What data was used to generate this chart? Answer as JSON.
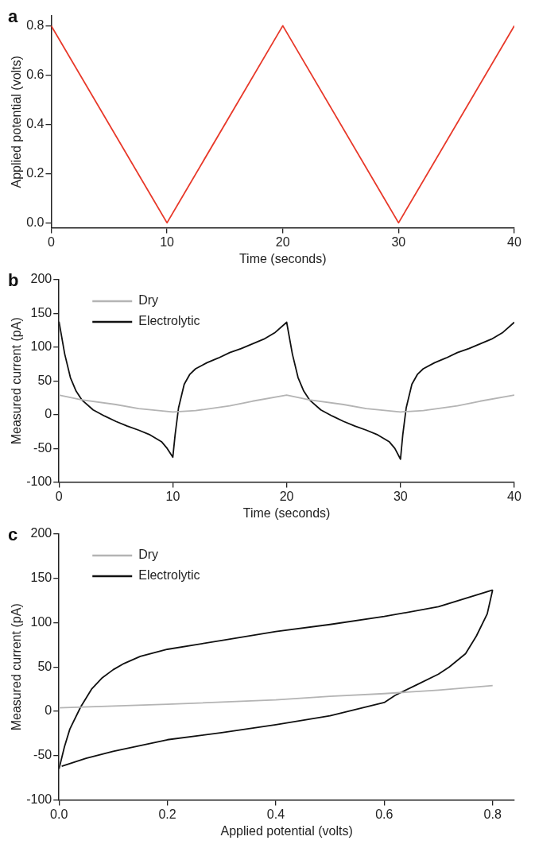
{
  "chart_data": [
    {
      "type": "line",
      "title": "a",
      "xlabel": "Time (seconds)",
      "ylabel": "Applied potential (volts)",
      "xlim": [
        0,
        40
      ],
      "ylim": [
        -0.02,
        0.84
      ],
      "xticks": [
        0,
        10,
        20,
        30,
        40
      ],
      "yticks": [
        {
          "value": 0,
          "label": "0.0"
        },
        0.2,
        0.4,
        0.6,
        0.8
      ],
      "grid": false,
      "legend": false,
      "marker": "none",
      "line_style": "solid",
      "series": [
        {
          "color": "#e8392a",
          "x": [
            0,
            10,
            20,
            30,
            40
          ],
          "values": [
            0.8,
            0,
            0.8,
            0,
            0.8
          ]
        }
      ]
    },
    {
      "type": "line",
      "title": "b",
      "xlabel": "Time (seconds)",
      "ylabel": "Measured current (pA)",
      "xlim": [
        0,
        40
      ],
      "ylim": [
        -100,
        200
      ],
      "xticks": [
        0,
        10,
        20,
        30,
        40
      ],
      "yticks": [
        -100,
        -50,
        0,
        50,
        100,
        150,
        200
      ],
      "grid": false,
      "legend": "top left",
      "marker": "none",
      "line_style": "solid",
      "series": [
        {
          "name": "Dry",
          "color": "#b4b4b4",
          "x": [
            0,
            2,
            5,
            7,
            10,
            12,
            15,
            17,
            20,
            22,
            25,
            27,
            30,
            32,
            35,
            37,
            40
          ],
          "values": [
            29,
            22,
            15,
            9,
            4,
            6,
            13,
            20,
            29,
            22,
            15,
            9,
            4,
            6,
            13,
            20,
            29
          ]
        },
        {
          "name": "Electrolytic",
          "color": "#111111",
          "x": [
            0,
            0.5,
            1,
            1.5,
            2,
            3,
            4,
            5,
            6,
            7,
            8,
            9,
            9.5,
            10,
            10.2,
            10.5,
            11,
            11.5,
            12,
            13,
            14,
            15,
            16,
            17,
            18,
            19,
            20,
            20.5,
            21,
            21.5,
            22,
            23,
            24,
            25,
            26,
            27,
            28,
            29,
            29.5,
            30,
            30.2,
            30.5,
            31,
            31.5,
            32,
            33,
            34,
            35,
            36,
            37,
            38,
            39,
            40
          ],
          "values": [
            138,
            90,
            55,
            35,
            22,
            7,
            -2,
            -10,
            -17,
            -23,
            -30,
            -40,
            -50,
            -63,
            -30,
            10,
            45,
            60,
            68,
            77,
            84,
            92,
            98,
            105,
            112,
            122,
            137,
            90,
            55,
            35,
            22,
            7,
            -2,
            -10,
            -17,
            -23,
            -30,
            -40,
            -50,
            -66,
            -30,
            10,
            45,
            60,
            68,
            77,
            84,
            92,
            98,
            105,
            112,
            122,
            137
          ]
        }
      ]
    },
    {
      "type": "line",
      "title": "c",
      "xlabel": "Applied potential (volts)",
      "ylabel": "Measured current (pA)",
      "xlim": [
        0,
        0.84
      ],
      "ylim": [
        -100,
        200
      ],
      "xticks": [
        {
          "value": 0,
          "label": "0.0"
        },
        0.2,
        0.4,
        0.6,
        0.8
      ],
      "yticks": [
        -100,
        -50,
        0,
        50,
        100,
        150,
        200
      ],
      "grid": false,
      "legend": "top left",
      "marker": "none",
      "line_style": "solid",
      "series": [
        {
          "name": "Dry",
          "color": "#b4b4b4",
          "x": [
            0,
            0.2,
            0.4,
            0.5,
            0.6,
            0.7,
            0.8
          ],
          "values": [
            4,
            8,
            13,
            17,
            20,
            24,
            29
          ]
        },
        {
          "name": "Electrolytic",
          "color": "#111111",
          "x": [
            0,
            0.01,
            0.02,
            0.04,
            0.06,
            0.08,
            0.1,
            0.12,
            0.15,
            0.2,
            0.3,
            0.4,
            0.5,
            0.6,
            0.7,
            0.8
          ],
          "values": [
            -65,
            -40,
            -20,
            5,
            25,
            38,
            47,
            54,
            62,
            70,
            80,
            90,
            98,
            107,
            118,
            137
          ]
        },
        {
          "color": "#111111",
          "x": [
            0.8,
            0.79,
            0.77,
            0.75,
            0.72,
            0.7,
            0.66,
            0.62,
            0.6,
            0.5,
            0.4,
            0.3,
            0.2,
            0.1,
            0.05,
            0.005
          ],
          "values": [
            137,
            110,
            85,
            65,
            50,
            42,
            30,
            18,
            10,
            -5,
            -15,
            -24,
            -32,
            -45,
            -53,
            -62
          ]
        }
      ]
    }
  ]
}
